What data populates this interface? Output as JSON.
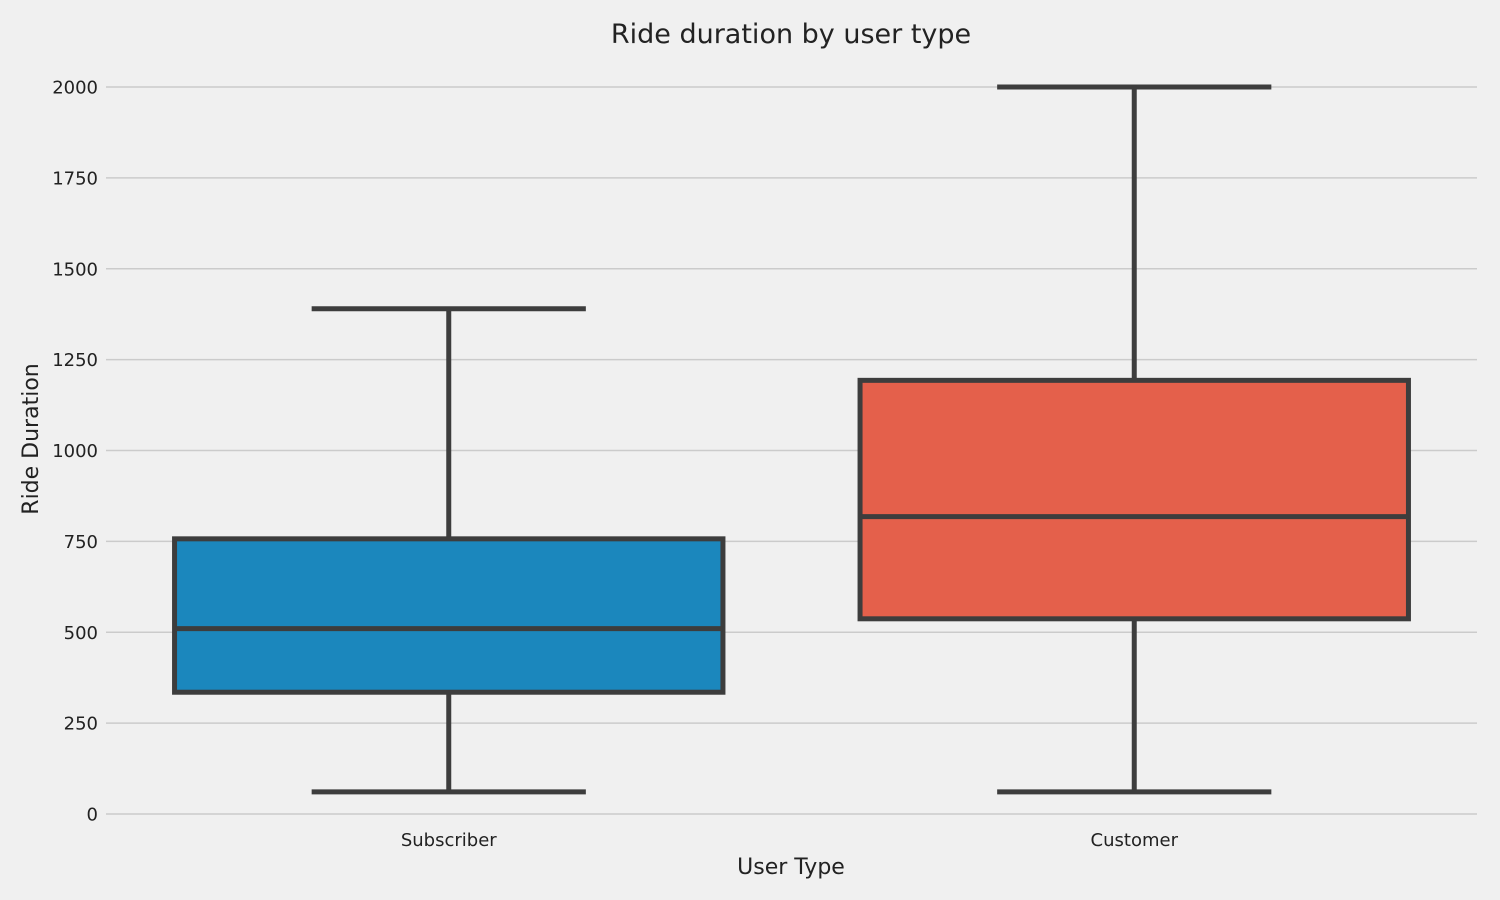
{
  "chart_data": {
    "type": "box",
    "title": "Ride duration by user type",
    "xlabel": "User Type",
    "ylabel": "Ride Duration",
    "ylim": [
      0,
      2000
    ],
    "yticks": [
      0,
      250,
      500,
      750,
      1000,
      1250,
      1500,
      1750,
      2000
    ],
    "grid": "horizontal",
    "categories": [
      "Subscriber",
      "Customer"
    ],
    "boxes": [
      {
        "category": "Subscriber",
        "whisker_low": 61,
        "q1": 335,
        "median": 510,
        "q3": 757,
        "whisker_high": 1390,
        "color": "#1b87bd"
      },
      {
        "category": "Customer",
        "whisker_low": 61,
        "q1": 537,
        "median": 818,
        "q3": 1193,
        "whisker_high": 2000,
        "color": "#e4604b"
      }
    ],
    "edge_color": "#3d3d3d",
    "grid_color": "#cbcbcb"
  }
}
